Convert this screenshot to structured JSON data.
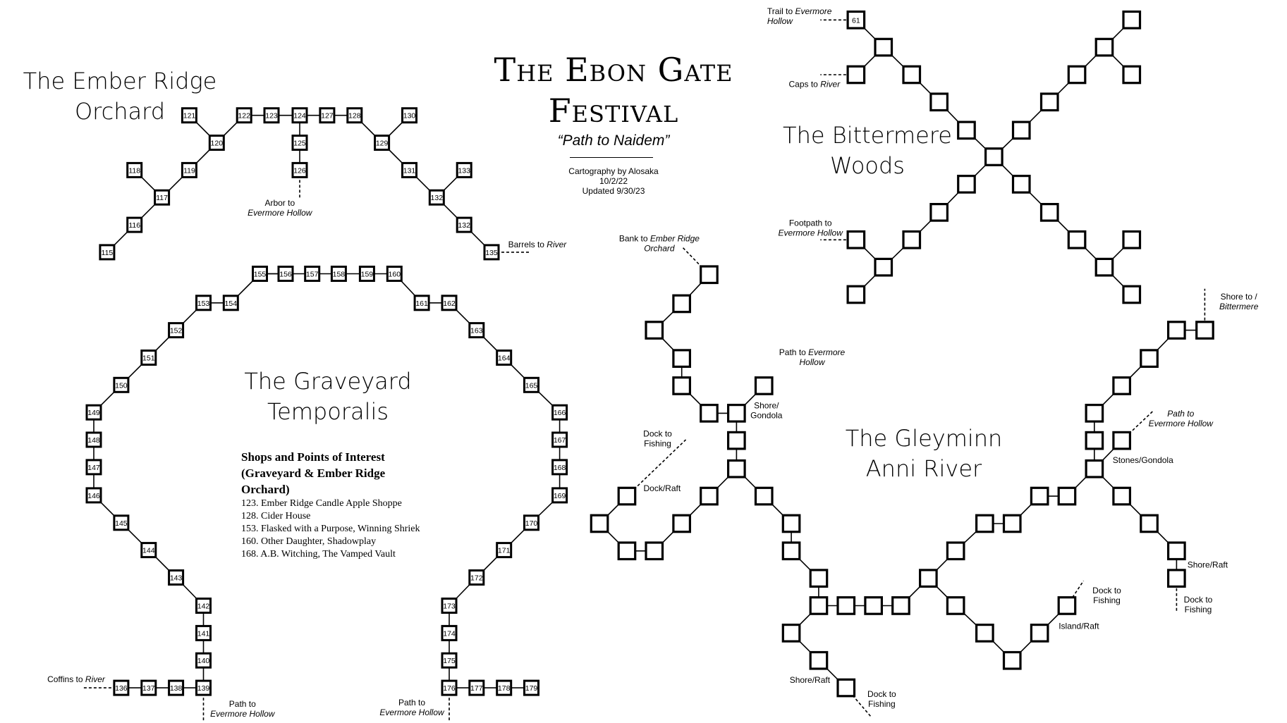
{
  "title": {
    "line1": "The Ebon Gate",
    "line2": "Festival"
  },
  "subtitle": "“Path to Naidem”",
  "credit": {
    "line1": "Cartography by Alosaka",
    "line2": "10/2/22",
    "line3": "Updated 9/30/23"
  },
  "regions": {
    "ember_ridge": {
      "line1": "The Ember Ridge",
      "line2": "Orchard"
    },
    "graveyard": {
      "line1": "The Graveyard",
      "line2": "Temporalis"
    },
    "bittermere": {
      "line1": "The Bittermere",
      "line2": "Woods"
    },
    "gleyminn": {
      "line1": "The Gleyminn",
      "line2": "Anni River"
    }
  },
  "legend": {
    "heading_line1": "Shops and Points of Interest",
    "heading_line2": "(Graveyard & Ember Ridge",
    "heading_line3": "Orchard)",
    "items": [
      "123. Ember Ridge Candle Apple Shoppe",
      "128. Cider House",
      "153. Flasked with a Purpose, Winning  Shriek",
      "160. Other Daughter, Shadowplay",
      "168. A.B. Witching, The Vamped Vault"
    ]
  },
  "exit_labels": {
    "arbor": {
      "line1": "Arbor to",
      "line2": "Evermore Hollow"
    },
    "barrels": {
      "normal": "Barrels to ",
      "italic": "River"
    },
    "coffins": {
      "normal": "Coffins to ",
      "italic": "River"
    },
    "path_left": {
      "line1": "Path to",
      "line2": "Evermore Hollow"
    },
    "path_right": {
      "line1": "Path to",
      "line2": "Evermore Hollow"
    },
    "trail": {
      "normal": "Trail to ",
      "italic1": "Evermore",
      "italic2": "Hollow"
    },
    "caps": {
      "normal": "Caps to ",
      "italic": "River"
    },
    "footpath": {
      "line1": "Footpath to",
      "line2": "Evermore Hollow"
    },
    "bank": {
      "normal": "Bank to ",
      "italic1": "Ember Ridge",
      "italic2": "Orchard"
    },
    "path_evermore_mid": {
      "normal": "Path to ",
      "italic1": "Evermore",
      "italic2": "Hollow"
    },
    "shore_gondola": {
      "line1": "Shore/",
      "line2": "Gondola"
    },
    "dock_fishing_1": {
      "line1": "Dock to",
      "line2": "Fishing"
    },
    "dock_raft": "Dock/Raft",
    "shore_bittermere": {
      "line1": "Shore to /",
      "line2": "Bittermere"
    },
    "path_evermore_right": {
      "line1": "Path to",
      "line2": "Evermore Hollow"
    },
    "stones_gondola": "Stones/Gondola",
    "shore_raft_right": "Shore/Raft",
    "dock_fishing_right": {
      "line1": "Dock to",
      "line2": "Fishing"
    },
    "dock_fishing_island": {
      "line1": "Dock to",
      "line2": "Fishing"
    },
    "island_raft": "Island/Raft",
    "shore_raft_bottom": "Shore/Raft",
    "dock_fishing_bottom": {
      "line1": "Dock to",
      "line2": "Fishing"
    }
  },
  "rooms": {
    "ember_ridge": [
      "121",
      "122",
      "123",
      "124",
      "127",
      "128",
      "130",
      "120",
      "125",
      "129",
      "118",
      "119",
      "126",
      "131",
      "133",
      "117",
      "132",
      "116",
      "132",
      "115",
      "135"
    ],
    "graveyard": [
      "155",
      "156",
      "157",
      "158",
      "159",
      "160",
      "153",
      "154",
      "161",
      "162",
      "152",
      "163",
      "151",
      "164",
      "150",
      "165",
      "149",
      "166",
      "148",
      "167",
      "147",
      "168",
      "146",
      "169",
      "145",
      "170",
      "144",
      "171",
      "143",
      "172",
      "142",
      "173",
      "141",
      "174",
      "140",
      "175",
      "136",
      "137",
      "138",
      "139",
      "176",
      "177",
      "178",
      "179"
    ],
    "bittermere": [
      "61"
    ]
  }
}
